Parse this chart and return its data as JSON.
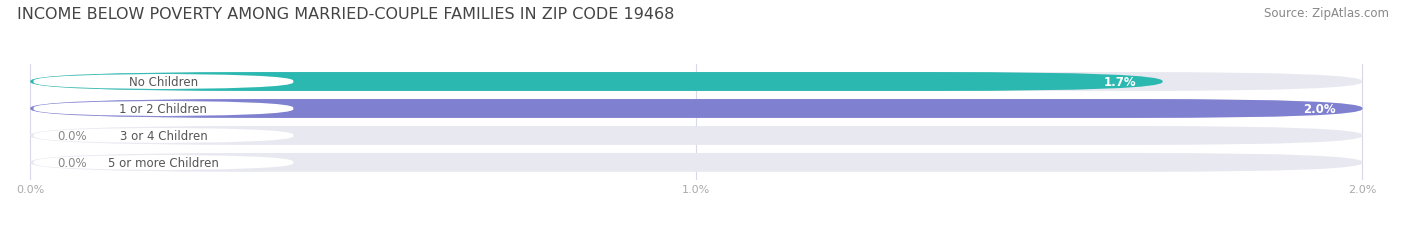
{
  "title": "INCOME BELOW POVERTY AMONG MARRIED-COUPLE FAMILIES IN ZIP CODE 19468",
  "source": "Source: ZipAtlas.com",
  "categories": [
    "No Children",
    "1 or 2 Children",
    "3 or 4 Children",
    "5 or more Children"
  ],
  "values": [
    1.7,
    2.0,
    0.0,
    0.0
  ],
  "bar_colors": [
    "#2ab8b0",
    "#8080d0",
    "#f5929e",
    "#f5c89a"
  ],
  "bar_bg_color": "#e8e8f0",
  "value_labels": [
    "1.7%",
    "2.0%",
    "0.0%",
    "0.0%"
  ],
  "xlim": [
    0,
    2.0
  ],
  "xticks": [
    0.0,
    1.0,
    2.0
  ],
  "xticklabels": [
    "0.0%",
    "1.0%",
    "2.0%"
  ],
  "title_fontsize": 11.5,
  "source_fontsize": 8.5,
  "bar_height": 0.7,
  "figsize": [
    14.06,
    2.32
  ],
  "dpi": 100,
  "background_color": "#ffffff",
  "title_color": "#444444",
  "source_color": "#888888",
  "tick_color": "#aaaaaa",
  "label_fontsize": 8.5,
  "value_fontsize": 8.5,
  "pill_label_color": "#555555",
  "grid_color": "#d8d8e8"
}
